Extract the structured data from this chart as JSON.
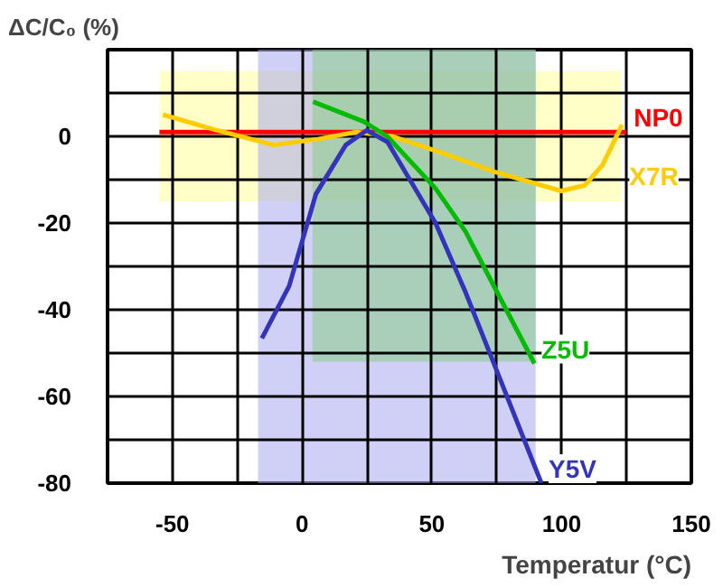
{
  "chart_data": {
    "type": "line",
    "xlabel": "Temperatur (°C)",
    "ylabel": "ΔC/C₀ (%)",
    "xlim": [
      -75,
      150
    ],
    "ylim": [
      -80,
      20
    ],
    "xticks": [
      {
        "value": -75,
        "label": null
      },
      -50,
      {
        "value": -25,
        "label": null
      },
      0,
      {
        "value": 25,
        "label": null
      },
      50,
      {
        "value": 75,
        "label": null
      },
      100,
      {
        "value": 125,
        "label": null
      },
      150
    ],
    "yticks": [
      -80,
      {
        "value": -70,
        "label": null
      },
      -60,
      {
        "value": -50,
        "label": null
      },
      -40,
      {
        "value": -30,
        "label": null
      },
      -20,
      {
        "value": -10,
        "label": null
      },
      0,
      {
        "value": 10,
        "label": null
      },
      {
        "value": 20,
        "label": null
      }
    ],
    "grid": true,
    "series": [
      {
        "color": "#ffff99",
        "x": [
          -55,
          123
        ],
        "values": [
          null,
          null
        ],
        "lower": [
          -15,
          -15
        ],
        "upper": [
          15,
          15
        ]
      },
      {
        "color": "#aaaaee",
        "x": [
          -17,
          90
        ],
        "values": [
          null,
          null
        ],
        "lower": [
          -80,
          -80
        ],
        "upper": [
          20,
          20
        ]
      },
      {
        "color": "#88cc88",
        "x": [
          4,
          90
        ],
        "values": [
          null,
          null
        ],
        "lower": [
          -52,
          -52
        ],
        "upper": [
          20,
          20
        ]
      },
      {
        "name": "NP0",
        "color": "#ff0000",
        "x": [
          -55,
          125
        ],
        "values": [
          1,
          1
        ]
      },
      {
        "name": "X7R",
        "color": "#ffcc00",
        "x": [
          -53.6,
          -34,
          -10.9,
          6.4,
          20.8,
          34.6,
          51.4,
          74.3,
          99.9,
          108.9,
          115.8,
          123.3
        ],
        "values": [
          5,
          1.6,
          -2,
          -0.6,
          1,
          0,
          -3.3,
          -8.2,
          -12.6,
          -11.3,
          -6.6,
          2.7
        ]
      },
      {
        "name": "Z5U",
        "color": "#00bb00",
        "x": [
          4.2,
          23.7,
          32.8,
          51.4,
          63,
          74.3,
          89.5
        ],
        "values": [
          8,
          3.4,
          0,
          -12,
          -22,
          -35,
          -52.4
        ]
      },
      {
        "name": "Y5V",
        "color": "#3333bb",
        "x": [
          -15.5,
          -5,
          5.3,
          16.8,
          24.9,
          32.9,
          51.4,
          63,
          74.5,
          92.2
        ],
        "values": [
          -46.6,
          -34.5,
          -13.3,
          -2,
          1.4,
          -1.3,
          -20,
          -36,
          -53.3,
          -80
        ]
      }
    ]
  }
}
